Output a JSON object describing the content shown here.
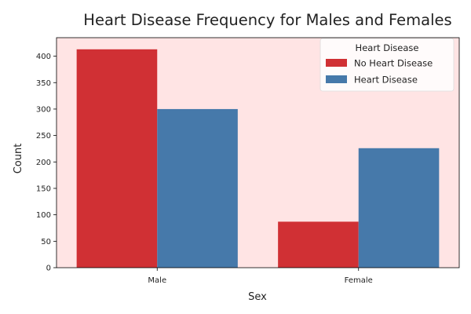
{
  "chart_data": {
    "type": "bar",
    "title": "Heart Disease Frequency for Males and Females",
    "xlabel": "Sex",
    "ylabel": "Count",
    "categories": [
      "Male",
      "Female"
    ],
    "series": [
      {
        "name": "No Heart Disease",
        "values": [
          413,
          87
        ],
        "color": "#d03034"
      },
      {
        "name": "Heart Disease",
        "values": [
          300,
          226
        ],
        "color": "#4679aa"
      }
    ],
    "ylim": [
      0,
      435
    ],
    "yticks": [
      0,
      50,
      100,
      150,
      200,
      250,
      300,
      350,
      400
    ],
    "legend": {
      "title": "Heart Disease",
      "placement": "top-right"
    },
    "grid": false,
    "plot_background": "#ffe4e4"
  }
}
